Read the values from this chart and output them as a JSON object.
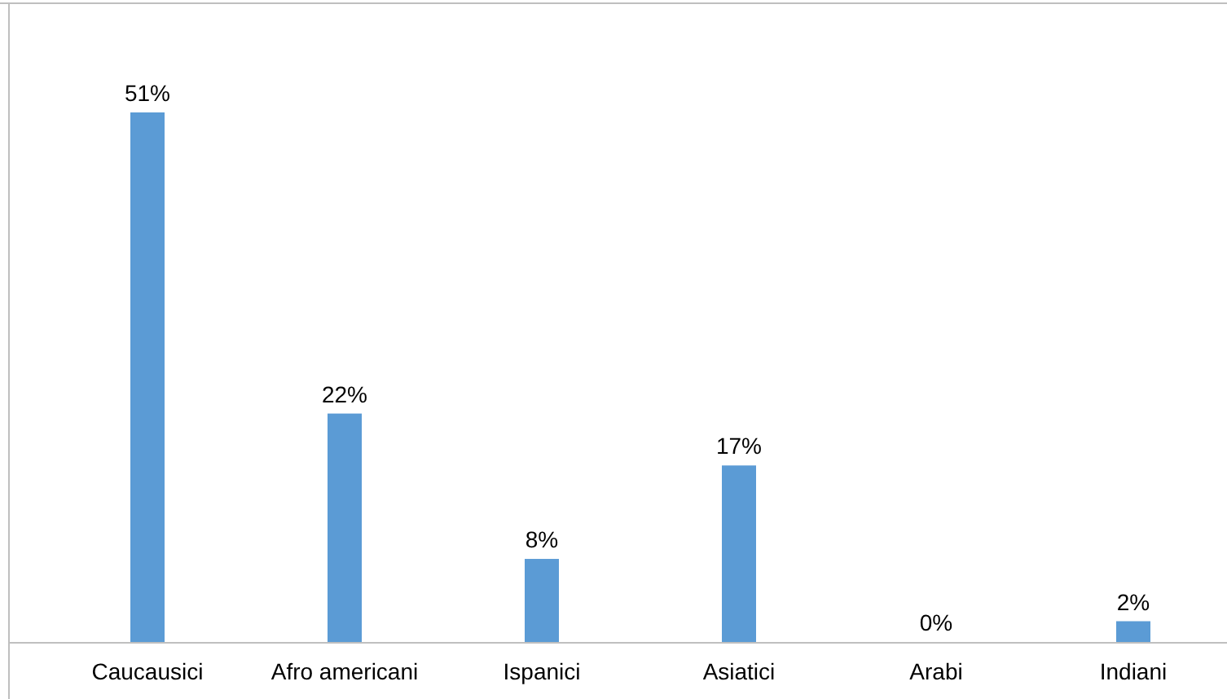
{
  "chart_data": {
    "type": "bar",
    "categories": [
      "Caucausici",
      "Afro americani",
      "Ispanici",
      "Asiatici",
      "Arabi",
      "Indiani"
    ],
    "values": [
      51,
      22,
      8,
      17,
      0,
      2
    ],
    "value_labels": [
      "51%",
      "22%",
      "8%",
      "17%",
      "0%",
      "2%"
    ],
    "color": "#5b9bd5"
  }
}
